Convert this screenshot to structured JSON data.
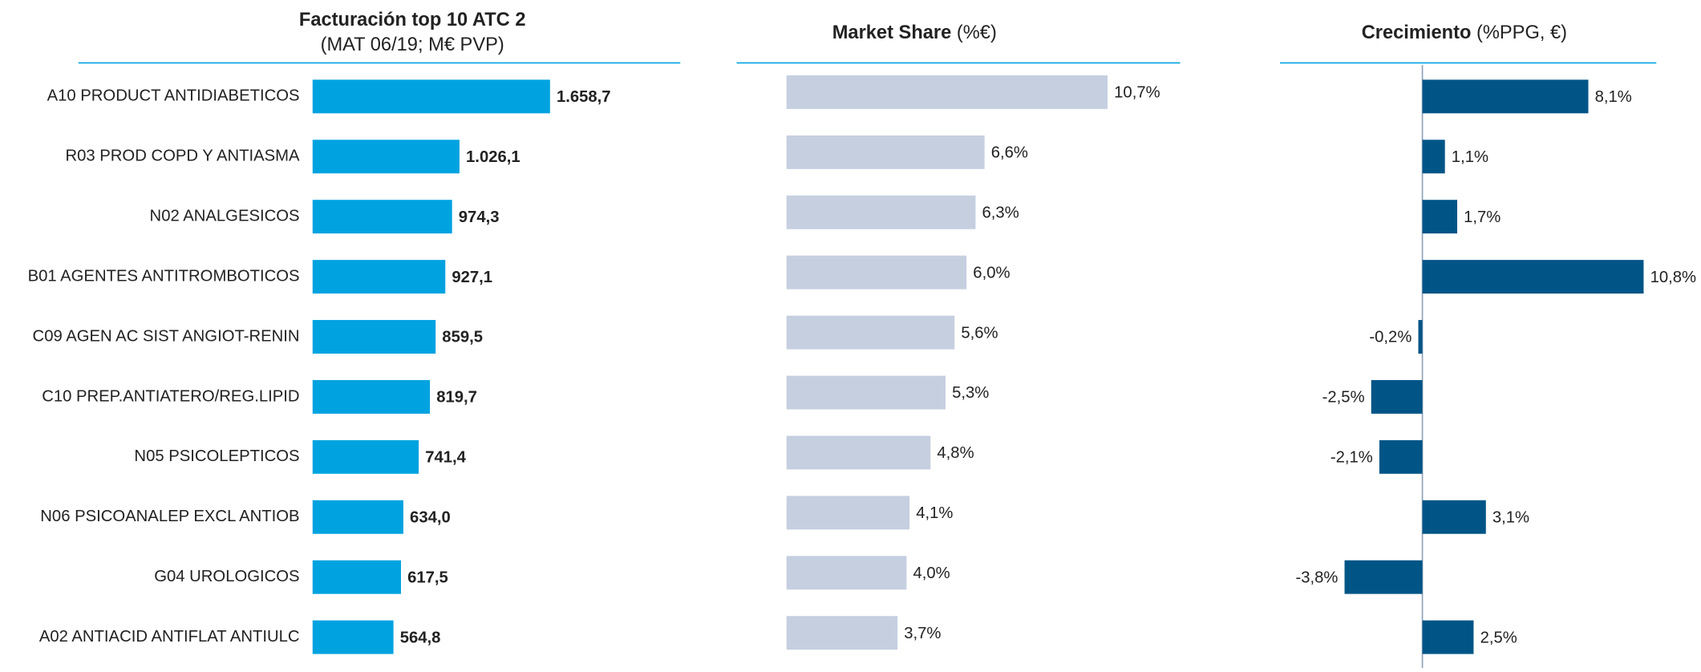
{
  "chart_data": [
    {
      "type": "bar",
      "orientation": "horizontal",
      "title": "Facturación top 10 ATC 2",
      "subtitle": "(MAT 06/19; M€ PVP)",
      "categories": [
        "A10 PRODUCT ANTIDIABETICOS",
        "R03 PROD COPD Y ANTIASMA",
        "N02 ANALGESICOS",
        "B01 AGENTES ANTITROMBOTICOS",
        "C09 AGEN AC SIST ANGIOT-RENIN",
        "C10 PREP.ANTIATERO/REG.LIPID",
        "N05 PSICOLEPTICOS",
        "N06 PSICOANALEP EXCL ANTIOB",
        "G04 UROLOGICOS",
        "A02 ANTIACID ANTIFLAT ANTIULC"
      ],
      "values": [
        1658.7,
        1026.1,
        974.3,
        927.1,
        859.5,
        819.7,
        741.4,
        634.0,
        617.5,
        564.8
      ],
      "value_labels": [
        "1.658,7",
        "1.026,1",
        "974,3",
        "927,1",
        "859,5",
        "819,7",
        "741,4",
        "634,0",
        "617,5",
        "564,8"
      ],
      "color": "#00a3e0",
      "xlim": [
        0,
        2000
      ]
    },
    {
      "type": "bar",
      "orientation": "horizontal",
      "title": "Market Share",
      "subtitle": "(%€)",
      "values": [
        10.7,
        6.6,
        6.3,
        6.0,
        5.6,
        5.3,
        4.8,
        4.1,
        4.0,
        3.7
      ],
      "value_labels": [
        "10,7%",
        "6,6%",
        "6,3%",
        "6,0%",
        "5,6%",
        "5,3%",
        "4,8%",
        "4,1%",
        "4,0%",
        "3,7%"
      ],
      "color": "#c5cfe0",
      "xlim": [
        0,
        12
      ]
    },
    {
      "type": "bar",
      "orientation": "horizontal",
      "title": "Crecimiento",
      "subtitle": "(%PPG, €)",
      "values": [
        8.1,
        1.1,
        1.7,
        10.8,
        -0.2,
        -2.5,
        -2.1,
        3.1,
        -3.8,
        2.5
      ],
      "value_labels": [
        "8,1%",
        "1,1%",
        "1,7%",
        "10,8%",
        "-0,2%",
        "-2,5%",
        "-2,1%",
        "3,1%",
        "-3,8%",
        "2,5%"
      ],
      "color": "#005587",
      "xlim": [
        -6,
        12
      ]
    }
  ]
}
